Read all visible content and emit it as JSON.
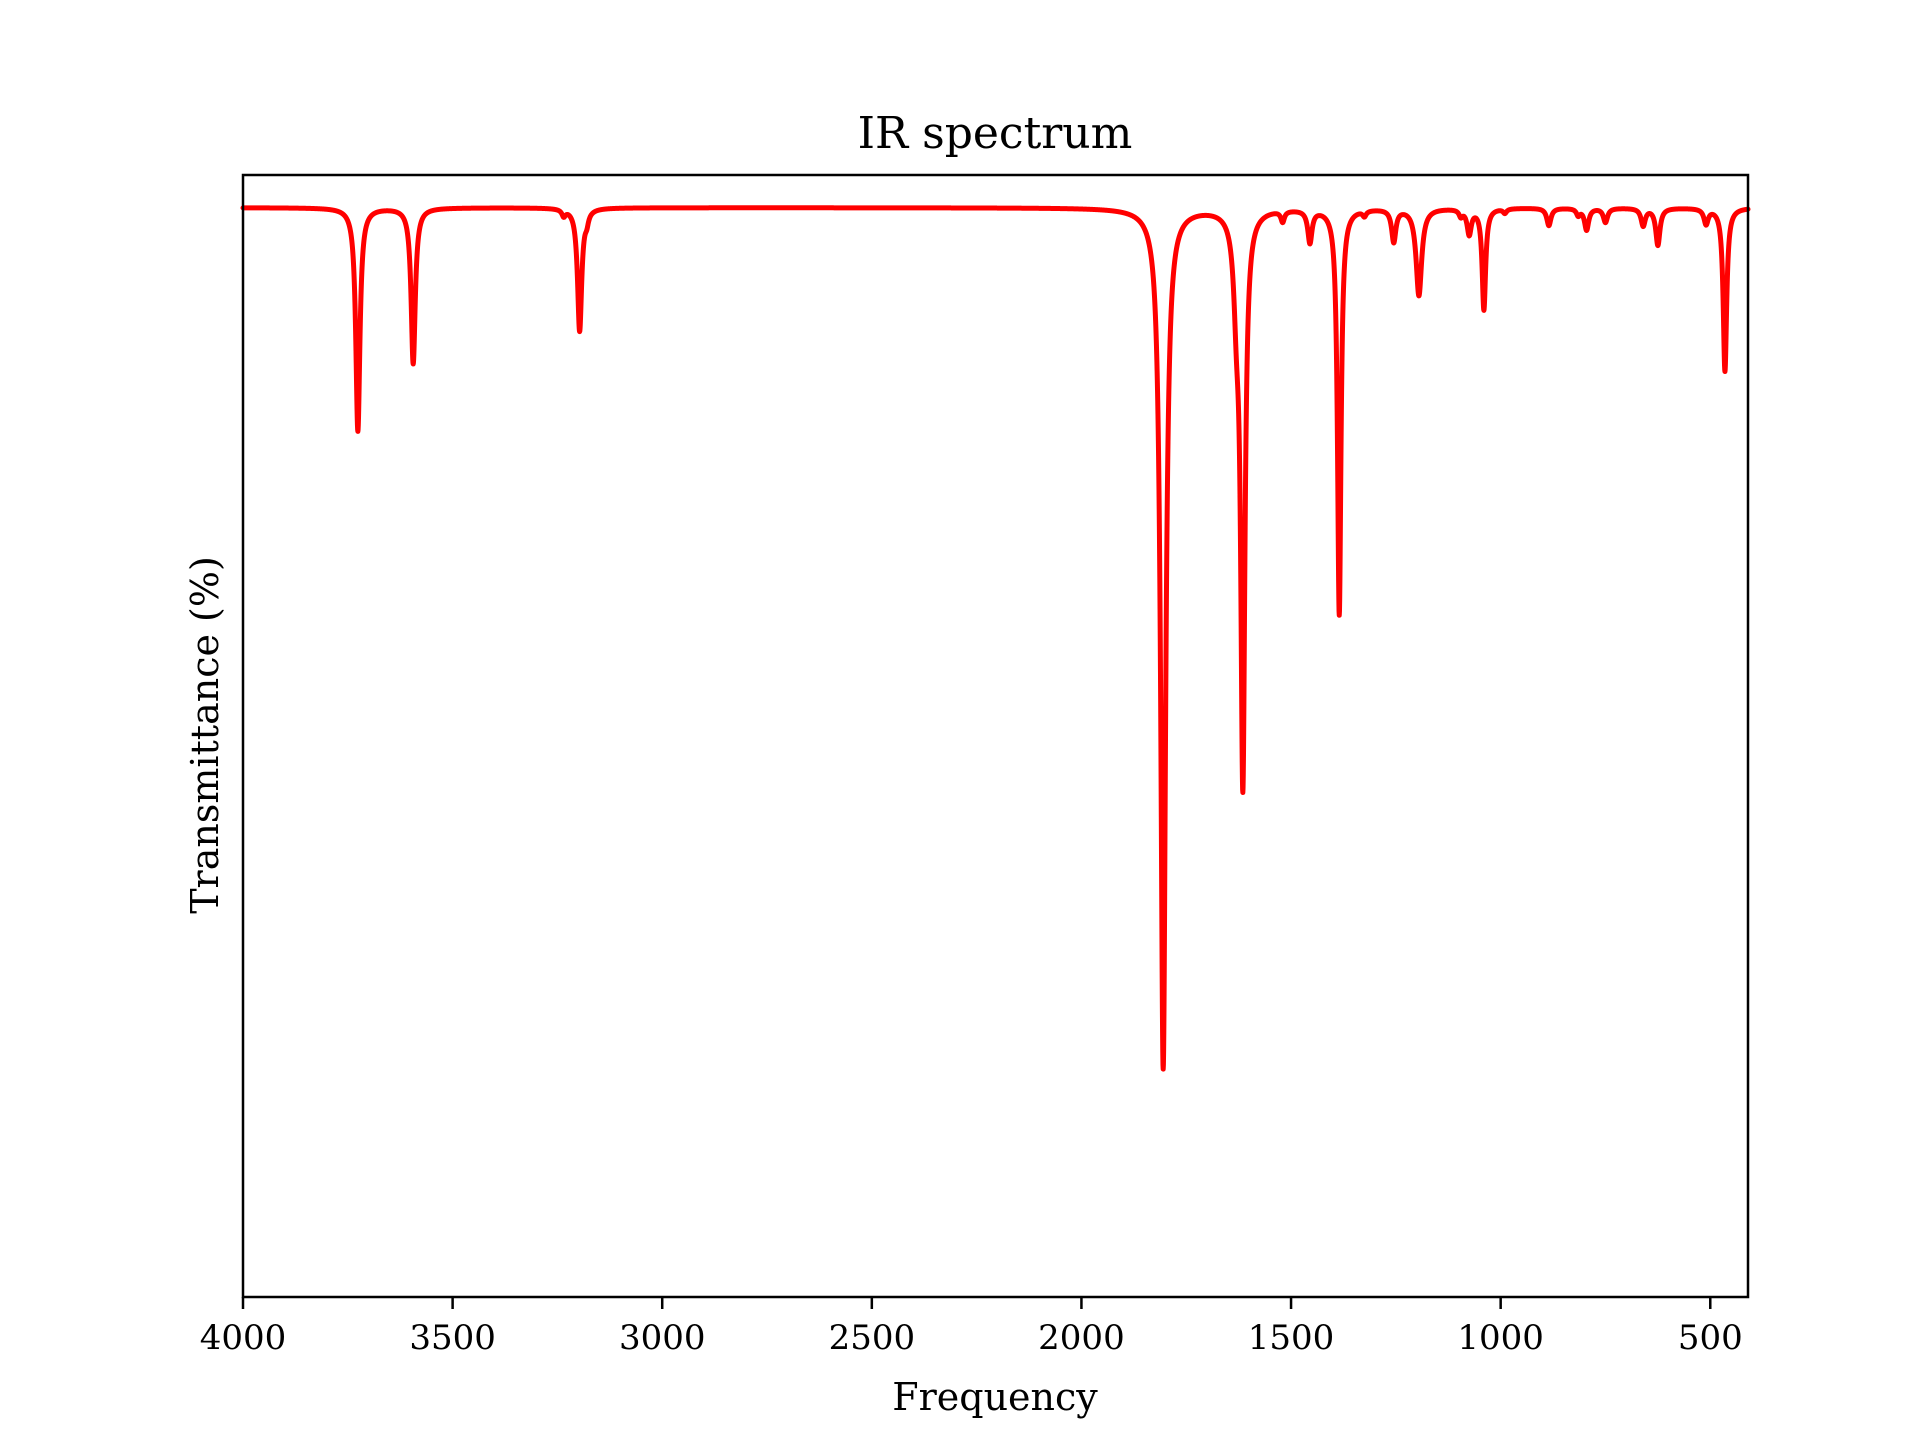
{
  "chart_data": {
    "type": "line",
    "title": "IR spectrum",
    "xlabel": "Frequency",
    "ylabel": "Transmittance (%)",
    "xlim": [
      4000,
      410
    ],
    "x_reversed": true,
    "xticks": [
      4000,
      3500,
      3000,
      2500,
      2000,
      1500,
      1000,
      500
    ],
    "ylim": [
      0,
      1.03
    ],
    "y_ticks_shown": false,
    "grid": false,
    "legend": "none",
    "line_color": "#ff0000",
    "baseline": 1.0,
    "peaks": [
      {
        "x": 3726,
        "depth": 0.205,
        "width": 6
      },
      {
        "x": 3594,
        "depth": 0.143,
        "width": 6
      },
      {
        "x": 3235,
        "depth": 0.006,
        "width": 5
      },
      {
        "x": 3197,
        "depth": 0.113,
        "width": 6
      },
      {
        "x": 3180,
        "depth": 0.008,
        "width": 5
      },
      {
        "x": 1805,
        "depth": 0.79,
        "width": 7
      },
      {
        "x": 1630,
        "depth": 0.07,
        "width": 8
      },
      {
        "x": 1615,
        "depth": 0.52,
        "width": 6
      },
      {
        "x": 1520,
        "depth": 0.01,
        "width": 5
      },
      {
        "x": 1455,
        "depth": 0.03,
        "width": 6
      },
      {
        "x": 1385,
        "depth": 0.373,
        "width": 5
      },
      {
        "x": 1325,
        "depth": 0.005,
        "width": 5
      },
      {
        "x": 1255,
        "depth": 0.03,
        "width": 6
      },
      {
        "x": 1195,
        "depth": 0.08,
        "width": 8
      },
      {
        "x": 1095,
        "depth": 0.006,
        "width": 5
      },
      {
        "x": 1075,
        "depth": 0.023,
        "width": 6
      },
      {
        "x": 1040,
        "depth": 0.093,
        "width": 5
      },
      {
        "x": 990,
        "depth": 0.004,
        "width": 5
      },
      {
        "x": 885,
        "depth": 0.016,
        "width": 6
      },
      {
        "x": 815,
        "depth": 0.006,
        "width": 5
      },
      {
        "x": 795,
        "depth": 0.02,
        "width": 6
      },
      {
        "x": 750,
        "depth": 0.013,
        "width": 6
      },
      {
        "x": 660,
        "depth": 0.016,
        "width": 6
      },
      {
        "x": 625,
        "depth": 0.034,
        "width": 6
      },
      {
        "x": 510,
        "depth": 0.014,
        "width": 6
      },
      {
        "x": 465,
        "depth": 0.15,
        "width": 5
      }
    ]
  }
}
